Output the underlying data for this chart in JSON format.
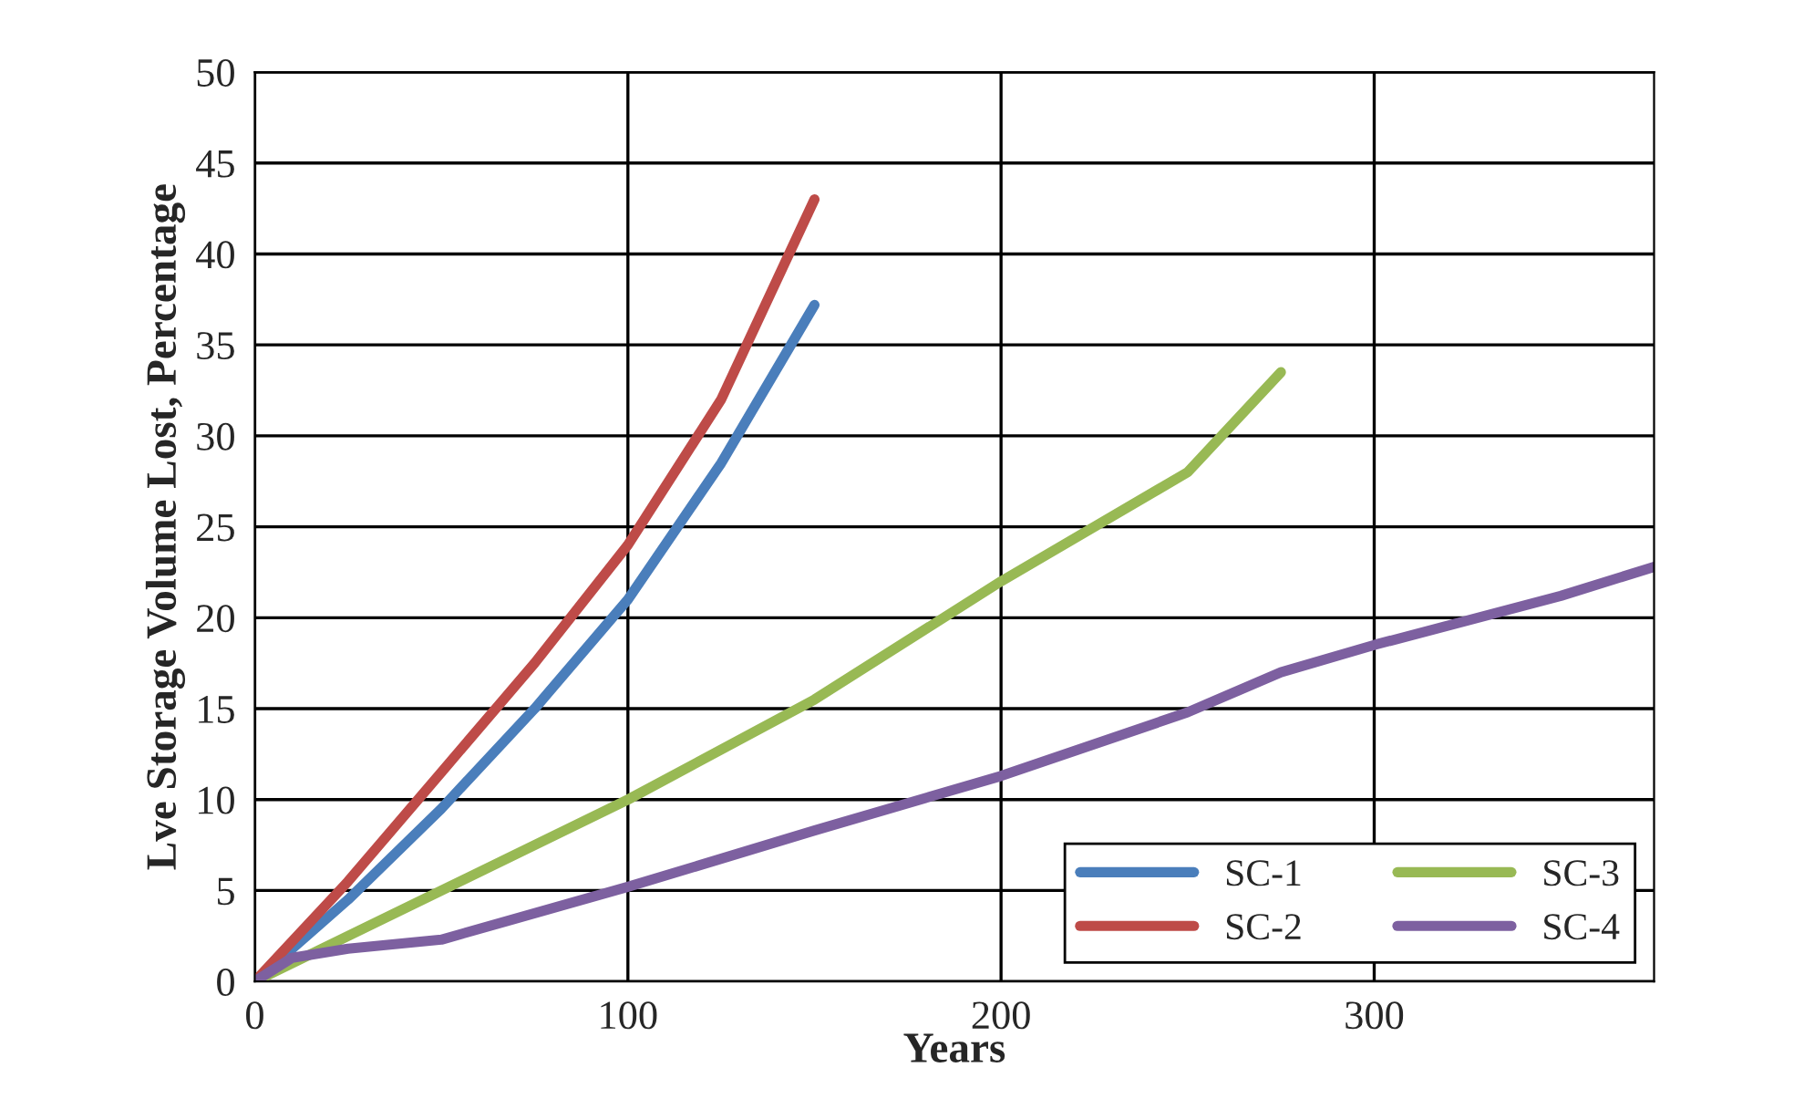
{
  "chart_data": {
    "type": "line",
    "xlabel": "Years",
    "ylabel": "Lve Storage Volume Lost, Percentage",
    "series": [
      {
        "name": "SC-1",
        "color": "#4a7ebb",
        "x": [
          0,
          25,
          50,
          75,
          100,
          125,
          150
        ],
        "values": [
          0,
          4.5,
          9.5,
          15,
          21,
          28.5,
          37.2
        ]
      },
      {
        "name": "SC-2",
        "color": "#be4b48",
        "x": [
          0,
          25,
          50,
          75,
          100,
          125,
          150
        ],
        "values": [
          0,
          5.5,
          11.5,
          17.5,
          24,
          32,
          43
        ]
      },
      {
        "name": "SC-3",
        "color": "#98b954",
        "x": [
          0,
          50,
          100,
          150,
          200,
          250,
          275
        ],
        "values": [
          0,
          5,
          10,
          15.5,
          22,
          28,
          33.5
        ]
      },
      {
        "name": "SC-4",
        "color": "#7d60a0",
        "x": [
          0,
          10,
          25,
          50,
          100,
          150,
          200,
          250,
          275,
          300,
          350,
          375
        ],
        "values": [
          0,
          1.3,
          1.8,
          2.3,
          5.2,
          8.3,
          11.3,
          14.8,
          17,
          18.5,
          21.2,
          22.8
        ]
      }
    ],
    "xlim": [
      0,
      375
    ],
    "xticks": [
      0,
      100,
      200,
      300
    ],
    "ylim": [
      0,
      50
    ],
    "yticks": [
      0,
      5,
      10,
      15,
      20,
      25,
      30,
      35,
      40,
      45,
      50
    ],
    "grid": true,
    "legend": "bottom right",
    "marker": "none",
    "line_style": "solid"
  }
}
